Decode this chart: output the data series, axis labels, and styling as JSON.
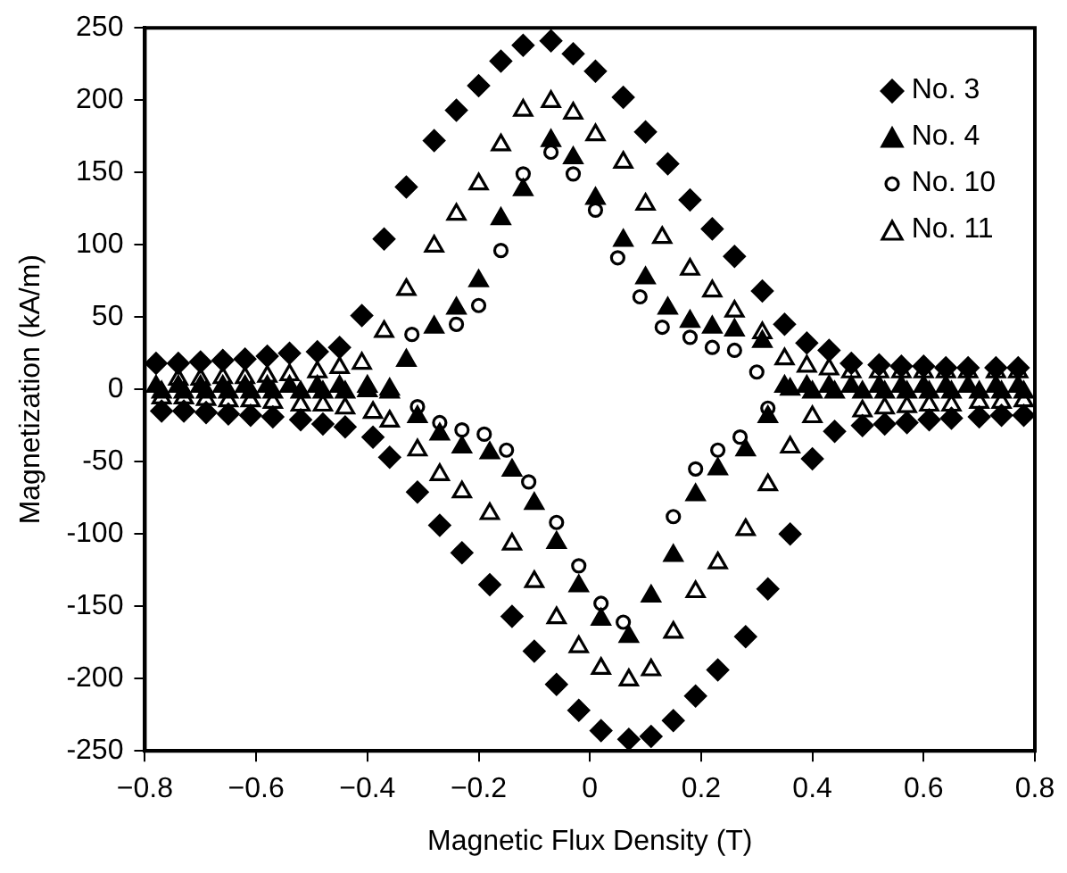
{
  "chart_data": {
    "type": "scatter",
    "xlabel": "Magnetic Flux Density (T)",
    "ylabel": "Magnetization (kA/m)",
    "xlim": [
      -0.8,
      0.8
    ],
    "xticks": [
      {
        "value": -0.8,
        "label": "−0.8"
      },
      {
        "value": -0.6,
        "label": "−0.6"
      },
      {
        "value": -0.4,
        "label": "−0.4"
      },
      {
        "value": -0.2,
        "label": "−0.2"
      },
      0,
      0.2,
      0.4,
      0.6,
      0.8
    ],
    "ylim": [
      -250,
      250
    ],
    "yticks": [
      -250,
      -200,
      -150,
      -100,
      -50,
      0,
      50,
      100,
      150,
      200,
      250
    ],
    "grid": false,
    "legend": "top right",
    "series": [
      {
        "name": "No. 3",
        "color": "#000000",
        "marker": "diamond",
        "x": [
          -0.78,
          -0.74,
          -0.7,
          -0.66,
          -0.62,
          -0.58,
          -0.54,
          -0.49,
          -0.45,
          -0.41,
          -0.37,
          -0.33,
          -0.28,
          -0.24,
          -0.2,
          -0.16,
          -0.12,
          -0.07,
          -0.03,
          0.01,
          0.06,
          0.1,
          0.14,
          0.18,
          0.22,
          0.26,
          0.31,
          0.35,
          0.39,
          0.43,
          0.47,
          0.52,
          0.56,
          0.6,
          0.64,
          0.68,
          0.73,
          0.77,
          -0.77,
          -0.73,
          -0.69,
          -0.65,
          -0.61,
          -0.57,
          -0.52,
          -0.48,
          -0.44,
          -0.39,
          -0.36,
          -0.31,
          -0.27,
          -0.23,
          -0.18,
          -0.14,
          -0.1,
          -0.06,
          -0.02,
          0.02,
          0.07,
          0.11,
          0.15,
          0.19,
          0.23,
          0.28,
          0.32,
          0.36,
          0.4,
          0.44,
          0.49,
          0.53,
          0.57,
          0.61,
          0.65,
          0.7,
          0.74,
          0.78
        ],
        "values": [
          18,
          18,
          19,
          20,
          21,
          23,
          25,
          26,
          29,
          51,
          104,
          140,
          172,
          193,
          210,
          227,
          238,
          241,
          232,
          220,
          202,
          178,
          156,
          131,
          111,
          92,
          68,
          45,
          32,
          27,
          18,
          17,
          16,
          16,
          15,
          15,
          15,
          15,
          -15,
          -15,
          -16,
          -17,
          -18,
          -19,
          -21,
          -24,
          -26,
          -33,
          -47,
          -71,
          -94,
          -113,
          -135,
          -157,
          -181,
          -204,
          -222,
          -236,
          -242,
          -240,
          -229,
          -212,
          -194,
          -171,
          -138,
          -100,
          -48,
          -29,
          -25,
          -24,
          -23,
          -21,
          -20,
          -19,
          -18,
          -18
        ]
      },
      {
        "name": "No. 4",
        "color": "#000000",
        "marker": "triangle",
        "x": [
          -0.78,
          -0.74,
          -0.7,
          -0.66,
          -0.62,
          -0.58,
          -0.54,
          -0.49,
          -0.45,
          -0.4,
          -0.36,
          -0.33,
          -0.28,
          -0.24,
          -0.2,
          -0.16,
          -0.12,
          -0.07,
          -0.03,
          0.01,
          0.06,
          0.1,
          0.14,
          0.18,
          0.22,
          0.26,
          0.31,
          0.35,
          0.39,
          0.43,
          0.47,
          0.52,
          0.56,
          0.6,
          0.64,
          0.68,
          0.73,
          0.77,
          -0.77,
          -0.73,
          -0.69,
          -0.65,
          -0.61,
          -0.57,
          -0.52,
          -0.48,
          -0.44,
          -0.4,
          -0.36,
          -0.31,
          -0.27,
          -0.23,
          -0.18,
          -0.14,
          -0.1,
          -0.06,
          -0.02,
          0.02,
          0.07,
          0.11,
          0.15,
          0.19,
          0.23,
          0.28,
          0.32,
          0.36,
          0.4,
          0.44,
          0.49,
          0.53,
          0.57,
          0.61,
          0.65,
          0.7,
          0.74,
          0.78
        ],
        "values": [
          2,
          2,
          2,
          2,
          2,
          2,
          2,
          2,
          2,
          2,
          0,
          20,
          43,
          56,
          75,
          118,
          138,
          172,
          160,
          132,
          103,
          77,
          56,
          47,
          43,
          41,
          33,
          2,
          2,
          2,
          2,
          2,
          2,
          2,
          2,
          2,
          2,
          2,
          -2,
          -2,
          -2,
          -2,
          -2,
          -2,
          -2,
          -2,
          -2,
          -1,
          -2,
          -19,
          -31,
          -40,
          -44,
          -56,
          -79,
          -106,
          -136,
          -159,
          -171,
          -143,
          -115,
          -73,
          -55,
          -42,
          -19,
          0,
          -2,
          -2,
          -2,
          -2,
          -2,
          -2,
          -2,
          -2,
          -2,
          -2
        ]
      },
      {
        "name": "No. 10",
        "color": "#000000",
        "marker": "circle",
        "x": [
          -0.32,
          -0.28,
          -0.24,
          -0.2,
          -0.16,
          -0.12,
          -0.07,
          -0.03,
          0.01,
          0.05,
          0.09,
          0.13,
          0.18,
          0.22,
          0.26,
          0.3,
          -0.31,
          -0.27,
          -0.23,
          -0.19,
          -0.15,
          -0.11,
          -0.06,
          -0.02,
          0.02,
          0.06,
          0.15,
          0.19,
          0.23,
          0.27,
          0.32
        ],
        "values": [
          38,
          null,
          45,
          58,
          96,
          149,
          164,
          149,
          124,
          91,
          64,
          43,
          36,
          29,
          27,
          12,
          -12,
          -23,
          -28,
          -31,
          -42,
          -64,
          -92,
          -122,
          -148,
          -161,
          -88,
          -55,
          -42,
          -33,
          -13
        ]
      },
      {
        "name": "No. 11",
        "color": "#000000",
        "marker": "triangle",
        "x": [
          -0.74,
          -0.7,
          -0.66,
          -0.62,
          -0.58,
          -0.54,
          -0.49,
          -0.45,
          -0.41,
          -0.37,
          -0.33,
          -0.28,
          -0.24,
          -0.2,
          -0.16,
          -0.12,
          -0.07,
          -0.03,
          0.01,
          0.06,
          0.1,
          0.13,
          0.18,
          0.22,
          0.26,
          0.31,
          0.35,
          0.39,
          0.43,
          0.47,
          0.52,
          0.56,
          0.6,
          0.64,
          0.68,
          0.73,
          0.77,
          -0.77,
          -0.73,
          -0.69,
          -0.65,
          -0.61,
          -0.57,
          -0.52,
          -0.48,
          -0.44,
          -0.39,
          -0.36,
          -0.31,
          -0.27,
          -0.23,
          -0.18,
          -0.14,
          -0.1,
          -0.06,
          -0.02,
          0.02,
          0.07,
          0.11,
          0.15,
          0.19,
          0.23,
          0.28,
          0.32,
          0.36,
          0.4,
          0.49,
          0.53,
          0.57,
          0.61,
          0.65,
          0.7,
          0.74,
          0.78
        ],
        "values": [
          7,
          7,
          8,
          8,
          9,
          10,
          12,
          15,
          18,
          40,
          69,
          99,
          121,
          142,
          169,
          193,
          199,
          191,
          176,
          157,
          128,
          105,
          83,
          68,
          54,
          39,
          21,
          16,
          14,
          12,
          12,
          12,
          12,
          12,
          12,
          12,
          12,
          -6,
          -6,
          -7,
          -8,
          -8,
          -9,
          -11,
          -11,
          -13,
          -16,
          -22,
          -42,
          -59,
          -71,
          -86,
          -107,
          -133,
          -158,
          -178,
          -193,
          -201,
          -194,
          -168,
          -140,
          -120,
          -97,
          -66,
          -40,
          -19,
          -15,
          -13,
          -12,
          -11,
          -11,
          -9,
          -9,
          -8
        ]
      }
    ]
  }
}
